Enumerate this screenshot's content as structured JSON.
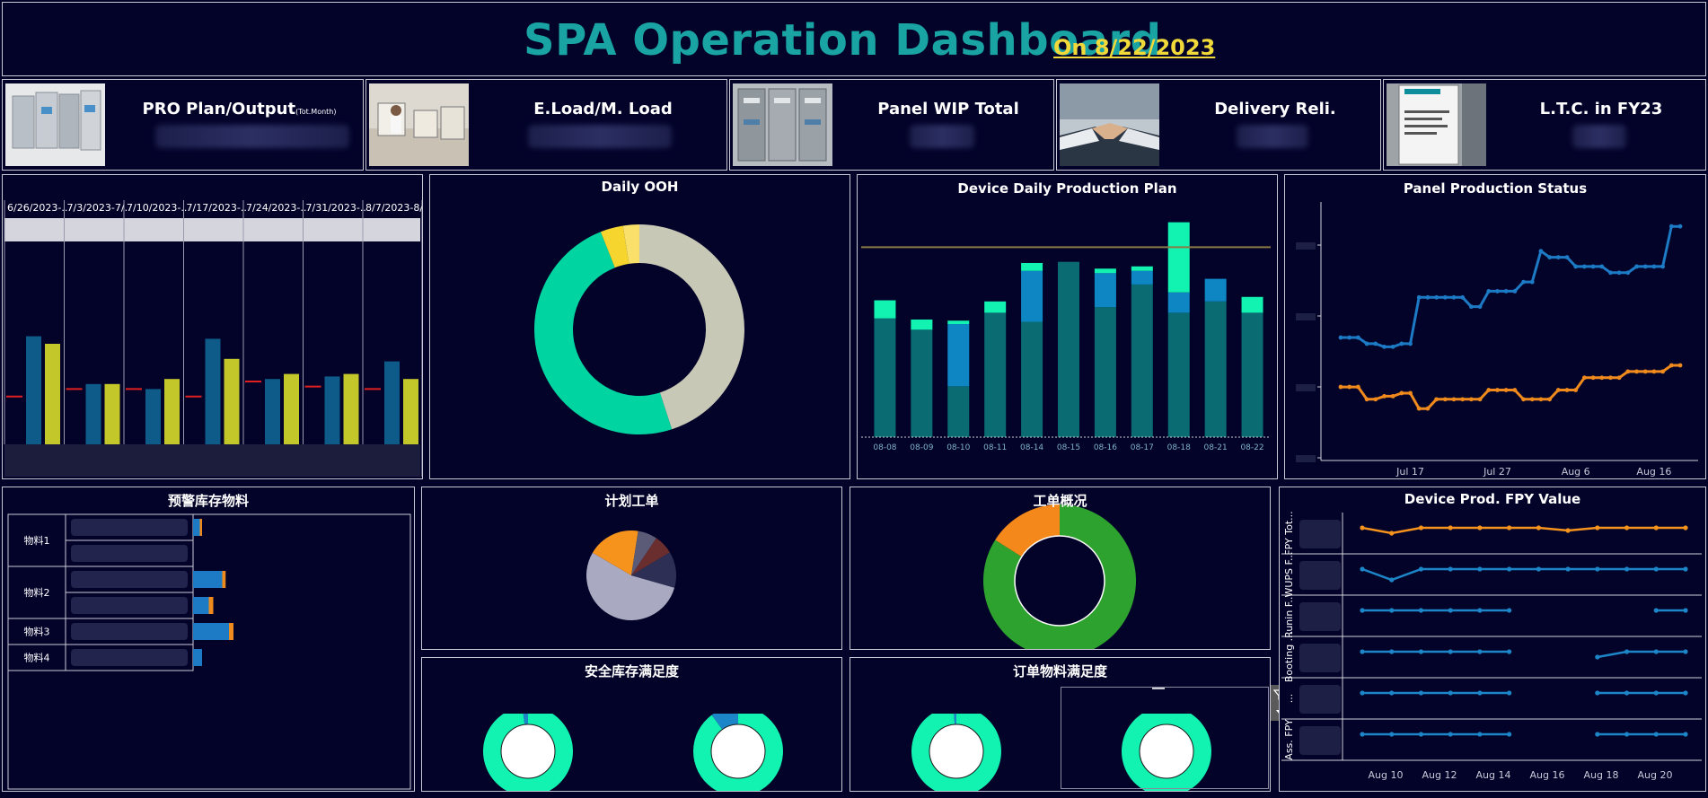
{
  "header": {
    "title": "SPA Operation Dashboard",
    "date": "On 8/22/2023"
  },
  "kpis": [
    {
      "label": "PRO Plan/Output",
      "sub": "(Tot.Month)",
      "icon": "switchgear-image"
    },
    {
      "label": "E.Load/M. Load",
      "sub": "",
      "icon": "workshop-image"
    },
    {
      "label": "Panel WIP Total",
      "sub": "",
      "icon": "panel-image"
    },
    {
      "label": "Delivery Reli.",
      "sub": "",
      "icon": "handshake-image"
    },
    {
      "label": "L.T.C. in FY23",
      "sub": "",
      "icon": "siemens-sign-image"
    }
  ],
  "weekly": {
    "weeks": [
      "6/26/2023-..",
      "7/3/2023-7/..",
      "7/10/2023-..",
      "7/17/2023-..",
      "7/24/2023-..",
      "7/31/2023-..",
      "8/7/2023-8/.."
    ],
    "blue": [
      0.43,
      0.24,
      0.22,
      0.42,
      0.26,
      0.27,
      0.33
    ],
    "yellow": [
      0.4,
      0.24,
      0.26,
      0.34,
      0.28,
      0.28,
      0.26
    ],
    "red": [
      0.19,
      0.22,
      0.22,
      0.19,
      0.25,
      0.23,
      0.22
    ],
    "colors": {
      "blue": "#0e5b8a",
      "yellow": "#c4c72a",
      "red": "#e01f1f"
    }
  },
  "daily_ooh": {
    "title": "Daily OOH",
    "chart_data": {
      "type": "pie",
      "slices": [
        {
          "value": 45,
          "color": "#c8c8b6"
        },
        {
          "value": 49,
          "color": "#00d4a0"
        },
        {
          "value": 3.5,
          "color": "#f5d52e"
        },
        {
          "value": 2.5,
          "color": "#f9e06a"
        }
      ]
    }
  },
  "device_plan": {
    "title": "Device Daily Production Plan",
    "chart_data": {
      "type": "bar",
      "categories": [
        "08-08",
        "08-09",
        "08-10",
        "08-11",
        "08-14",
        "08-15",
        "08-16",
        "08-17",
        "08-18",
        "08-21",
        "08-22"
      ],
      "series": [
        {
          "values": [
            105,
            95,
            45,
            110,
            102,
            155,
            115,
            135,
            110,
            120,
            110
          ],
          "color": "#0a6b72"
        },
        {
          "values": [
            0,
            0,
            55,
            0,
            45,
            0,
            30,
            12,
            18,
            20,
            0
          ],
          "color": "#0f86c4"
        },
        {
          "values": [
            16,
            9,
            3,
            10,
            7,
            0,
            4,
            4,
            62,
            0,
            14
          ],
          "color": "#12f2b0"
        }
      ],
      "target": 168,
      "ylim": [
        0,
        200
      ]
    }
  },
  "panel_status": {
    "title": "Panel Production Status",
    "chart_data": {
      "type": "line",
      "x_ticks": [
        "Jul 17",
        "Jul 27",
        "Aug 6",
        "Aug 16"
      ],
      "series": [
        {
          "color": "#1d7ac4",
          "values": [
            34,
            34,
            34,
            32,
            32,
            31,
            31,
            32,
            32,
            47,
            47,
            47,
            47,
            47,
            47,
            44,
            44,
            49,
            49,
            49,
            49,
            52,
            52,
            62,
            60,
            60,
            60,
            57,
            57,
            57,
            57,
            55,
            55,
            55,
            57,
            57,
            57,
            57,
            70,
            70
          ]
        },
        {
          "color": "#f08a1c",
          "values": [
            18,
            18,
            18,
            14,
            14,
            15,
            15,
            16,
            16,
            11,
            11,
            14,
            14,
            14,
            14,
            14,
            14,
            17,
            17,
            17,
            17,
            14,
            14,
            14,
            14,
            17,
            17,
            17,
            21,
            21,
            21,
            21,
            21,
            23,
            23,
            23,
            23,
            23,
            25,
            25
          ]
        }
      ]
    }
  },
  "warning_stock": {
    "title": "预警库存物料",
    "rows": [
      {
        "label": "物料1",
        "bars": [
          [
            0.03,
            0.01
          ],
          [
            0,
            0
          ]
        ]
      },
      {
        "label": "物料2",
        "bars": [
          [
            0.13,
            0.015
          ],
          [
            0.07,
            0.02
          ]
        ]
      },
      {
        "label": "物料3",
        "bars": [
          [
            0.16,
            0.02
          ]
        ]
      },
      {
        "label": "物料4",
        "bars": [
          [
            0.04,
            0
          ]
        ]
      }
    ]
  },
  "plan_orders": {
    "title": "计划工单",
    "chart_data": {
      "type": "pie",
      "slices": [
        {
          "value": 54,
          "color": "#a9a9c1"
        },
        {
          "value": 19,
          "color": "#f5931c"
        },
        {
          "value": 7,
          "color": "#5b5b78"
        },
        {
          "value": 7,
          "color": "#6b2e2e"
        },
        {
          "value": 13,
          "color": "#2d2f55"
        }
      ]
    }
  },
  "order_overview": {
    "title": "工单概况",
    "chart_data": {
      "type": "pie",
      "slices": [
        {
          "value": 84,
          "color": "#2ea22e"
        },
        {
          "value": 16,
          "color": "#f5881a"
        }
      ]
    }
  },
  "safety_stock": {
    "title": "安全库存满足度",
    "gauges": [
      {
        "value": 0.98,
        "accent": 0.02
      },
      {
        "value": 0.9,
        "accent": 0.1
      }
    ]
  },
  "order_material": {
    "title": "订单物料满足度",
    "gauges": [
      {
        "value": 0.99,
        "accent": 0.01
      },
      {
        "value": 1.0,
        "accent": 0
      }
    ]
  },
  "fpy": {
    "title": "Device Prod.  FPY Value",
    "rows": [
      {
        "label": "FPY Tot...",
        "color": "#f5931c",
        "values": [
          97,
          95,
          97,
          97,
          97,
          97,
          97,
          96,
          97,
          97,
          97,
          97
        ]
      },
      {
        "label": "WUPS F...",
        "color": "#1d86c8",
        "values": [
          97,
          93,
          97,
          97,
          97,
          97,
          97,
          97,
          97,
          97,
          97,
          97
        ]
      },
      {
        "label": "Runin F...",
        "color": "#1d86c8",
        "values": [
          97,
          97,
          97,
          97,
          97,
          97,
          null,
          null,
          null,
          null,
          97,
          97
        ]
      },
      {
        "label": "Booting ...",
        "color": "#1d86c8",
        "values": [
          97,
          97,
          97,
          97,
          97,
          97,
          null,
          null,
          95,
          97,
          97,
          97
        ]
      },
      {
        "label": "...",
        "color": "#1d86c8",
        "values": [
          97,
          97,
          97,
          97,
          97,
          97,
          null,
          null,
          97,
          97,
          97,
          97
        ]
      },
      {
        "label": "Ass. FPY",
        "color": "#1d86c8",
        "values": [
          97,
          97,
          97,
          97,
          97,
          97,
          null,
          null,
          97,
          97,
          97,
          97
        ]
      }
    ],
    "x_ticks": [
      "Aug 10",
      "Aug 12",
      "Aug 14",
      "Aug 16",
      "Aug 18",
      "Aug 20"
    ]
  }
}
